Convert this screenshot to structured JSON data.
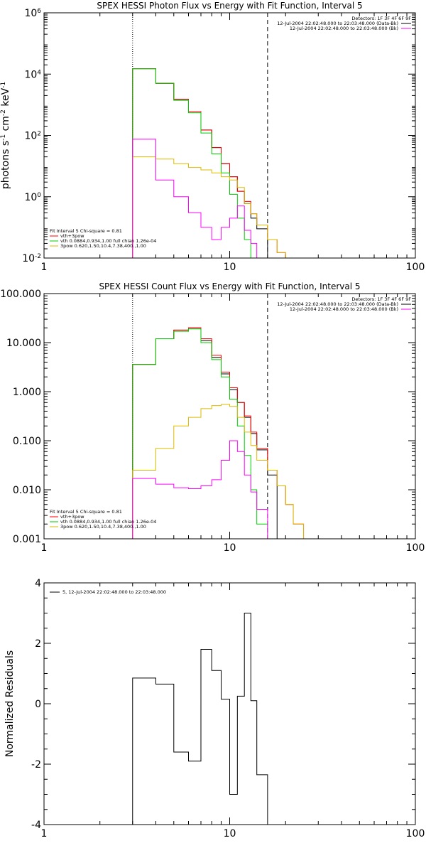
{
  "chart_data": [
    {
      "id": "photon",
      "type": "line",
      "title": "SPEX HESSI Photon Flux vs Energy with Fit Function, Interval 5",
      "ylabel_parts": [
        "photons s",
        "-1",
        " cm",
        "-2",
        " keV",
        "-1"
      ],
      "xscale": "log",
      "yscale": "log",
      "xlim": [
        1,
        100
      ],
      "ylim": [
        0.01,
        1000000
      ],
      "xticks": [
        1,
        10,
        100
      ],
      "xtick_labels": [
        "1",
        "10",
        "100"
      ],
      "yticks": [
        0.01,
        1,
        100,
        10000,
        1000000
      ],
      "ytick_labels": [
        [
          "10",
          "-2"
        ],
        [
          "10",
          "0"
        ],
        [
          "10",
          "2"
        ],
        [
          "10",
          "4"
        ],
        [
          "10",
          "6"
        ]
      ],
      "vlines": [
        {
          "x": 3.0,
          "style": "dotted"
        },
        {
          "x": 16.0,
          "style": "dashed"
        }
      ],
      "legend_top": [
        "Detectors: 1F 3F 4F 6F 9F",
        "12-Jul-2004 22:02:48.000 to 22:03:48.000 (Data-Bk)",
        "12-Jul-2004 22:02:48.000 to 22:03:48.000 (Bk)"
      ],
      "legend_top_colors": [
        "",
        "#000000",
        "#ff00ff"
      ],
      "legend_fit": [
        "Fit Interval 5   Chi-square = 0.81",
        "vth+3pow",
        "vth 0.0884,0.934,1.00  full chian 1.26e-04",
        "3pow 0.620,1.50,10.4,7.38,400.,1.00"
      ],
      "legend_fit_colors": [
        "",
        "#ff0000",
        "#00cc00",
        "#ddbb00"
      ],
      "edges": [
        3.0,
        4.0,
        5.0,
        6.0,
        7.0,
        8.0,
        9.0,
        10.0,
        11.0,
        12.0,
        13.0,
        14.0,
        16.0,
        18.0,
        20.0,
        22.0,
        25.0
      ],
      "series": [
        {
          "name": "Data-Bk",
          "color": "#000000",
          "values": [
            15000,
            5000,
            1500,
            600,
            150,
            40,
            12,
            4.5,
            1.5,
            0.6,
            0.2,
            0.09
          ]
        },
        {
          "name": "vth+3pow",
          "color": "#ff0000",
          "values": [
            15000,
            5000,
            1500,
            600,
            150,
            40,
            12,
            4.5,
            1.5,
            0.7,
            0.28,
            0.12,
            0.04,
            0.015,
            0.008,
            0.005
          ]
        },
        {
          "name": "vth",
          "color": "#00cc00",
          "values": [
            15000,
            5000,
            1400,
            550,
            120,
            25,
            6,
            1.2,
            0.2,
            0.04,
            0.008
          ]
        },
        {
          "name": "3pow",
          "color": "#ddbb00",
          "values": [
            20,
            17,
            12,
            9,
            7.5,
            6,
            4.5,
            3.5,
            2,
            0.6,
            0.28,
            0.12,
            0.04,
            0.015,
            0.008,
            0.005
          ]
        },
        {
          "name": "Bk",
          "color": "#ff00ff",
          "values": [
            75,
            3.5,
            1,
            0.3,
            0.1,
            0.04,
            0.1,
            0.2,
            0.5,
            0.08,
            0.03,
            0.01
          ]
        }
      ]
    },
    {
      "id": "count",
      "type": "line",
      "title": "SPEX HESSI Count Flux vs Energy with Fit Function, Interval 5",
      "xscale": "log",
      "yscale": "log",
      "xlim": [
        1,
        100
      ],
      "ylim": [
        0.001,
        100
      ],
      "xticks": [
        1,
        10,
        100
      ],
      "xtick_labels": [
        "1",
        "10",
        "100"
      ],
      "yticks": [
        0.001,
        0.01,
        0.1,
        1,
        10,
        100
      ],
      "ytick_labels": [
        "0.001",
        "0.010",
        "0.100",
        "1.000",
        "10.000",
        "100.000"
      ],
      "vlines": [
        {
          "x": 3.0,
          "style": "dotted"
        },
        {
          "x": 16.0,
          "style": "dashed"
        }
      ],
      "legend_top": [
        "Detectors: 1F 3F 4F 6F 9F",
        "12-Jul-2004 22:02:48.000 to 22:03:48.000 (Data-Bk)",
        "12-Jul-2004 22:02:48.000 to 22:03:48.000 (Bk)"
      ],
      "legend_top_colors": [
        "",
        "#000000",
        "#ff00ff"
      ],
      "legend_fit": [
        "Fit Interval 5   Chi-square = 0.81",
        "vth+3pow",
        "vth 0.0884,0.934,1.00  full chian 1.26e-04",
        "3pow 0.620,1.50,10.4,7.38,400.,1.00"
      ],
      "legend_fit_colors": [
        "",
        "#ff0000",
        "#00cc00",
        "#ddbb00"
      ],
      "edges": [
        3.0,
        4.0,
        5.0,
        6.0,
        7.0,
        8.0,
        9.0,
        10.0,
        11.0,
        12.0,
        13.0,
        14.0,
        16.0,
        18.0,
        20.0,
        22.0,
        25.0
      ],
      "series": [
        {
          "name": "Data-Bk",
          "color": "#000000",
          "values": [
            3.6,
            12,
            18,
            20,
            11,
            5,
            2.3,
            1.1,
            0.6,
            0.3,
            0.14,
            0.065,
            0.02
          ]
        },
        {
          "name": "vth+3pow",
          "color": "#ff0000",
          "values": [
            3.6,
            12,
            18,
            20,
            12,
            5.5,
            2.5,
            1.2,
            0.6,
            0.32,
            0.15,
            0.07,
            0.025,
            0.012,
            0.005,
            0.002
          ]
        },
        {
          "name": "vth",
          "color": "#00cc00",
          "values": [
            3.6,
            12,
            17,
            19,
            10,
            4.5,
            2,
            0.7,
            0.2,
            0.05,
            0.01,
            0.002
          ]
        },
        {
          "name": "3pow",
          "color": "#ddbb00",
          "values": [
            0.025,
            0.07,
            0.2,
            0.3,
            0.45,
            0.52,
            0.55,
            0.5,
            0.3,
            0.15,
            0.08,
            0.04,
            0.025,
            0.012,
            0.005,
            0.002
          ]
        },
        {
          "name": "Bk",
          "color": "#ff00ff",
          "values": [
            0.017,
            0.013,
            0.011,
            0.0105,
            0.012,
            0.016,
            0.04,
            0.1,
            0.06,
            0.02,
            0.009,
            0.004
          ]
        }
      ]
    },
    {
      "id": "residuals",
      "type": "line",
      "ylabel": "Normalized Residuals",
      "xscale": "log",
      "xlim": [
        1,
        100
      ],
      "ylim": [
        -4,
        4
      ],
      "xticks": [
        1,
        10,
        100
      ],
      "xtick_labels": [
        "1",
        "10",
        "100"
      ],
      "yticks": [
        -4,
        -2,
        0,
        2,
        4
      ],
      "ytick_labels": [
        "-4",
        "-2",
        "0",
        "2",
        "4"
      ],
      "legend_top": [
        "5, 12-Jul-2004 22:02:48.000 to 22:03:48.000"
      ],
      "legend_top_colors": [
        "#000000"
      ],
      "edges": [
        3.0,
        4.0,
        5.0,
        6.0,
        7.0,
        8.0,
        9.0,
        10.0,
        11.0,
        12.0,
        13.0,
        14.0,
        16.0
      ],
      "series": [
        {
          "name": "5, 12-Jul-2004 22:02:48.000 to 22:03:48.000",
          "color": "#000000",
          "values": [
            0.85,
            0.65,
            -1.6,
            -1.9,
            1.8,
            1.1,
            0.15,
            -3.0,
            0.25,
            3.0,
            0.1,
            -2.35
          ]
        }
      ]
    }
  ]
}
